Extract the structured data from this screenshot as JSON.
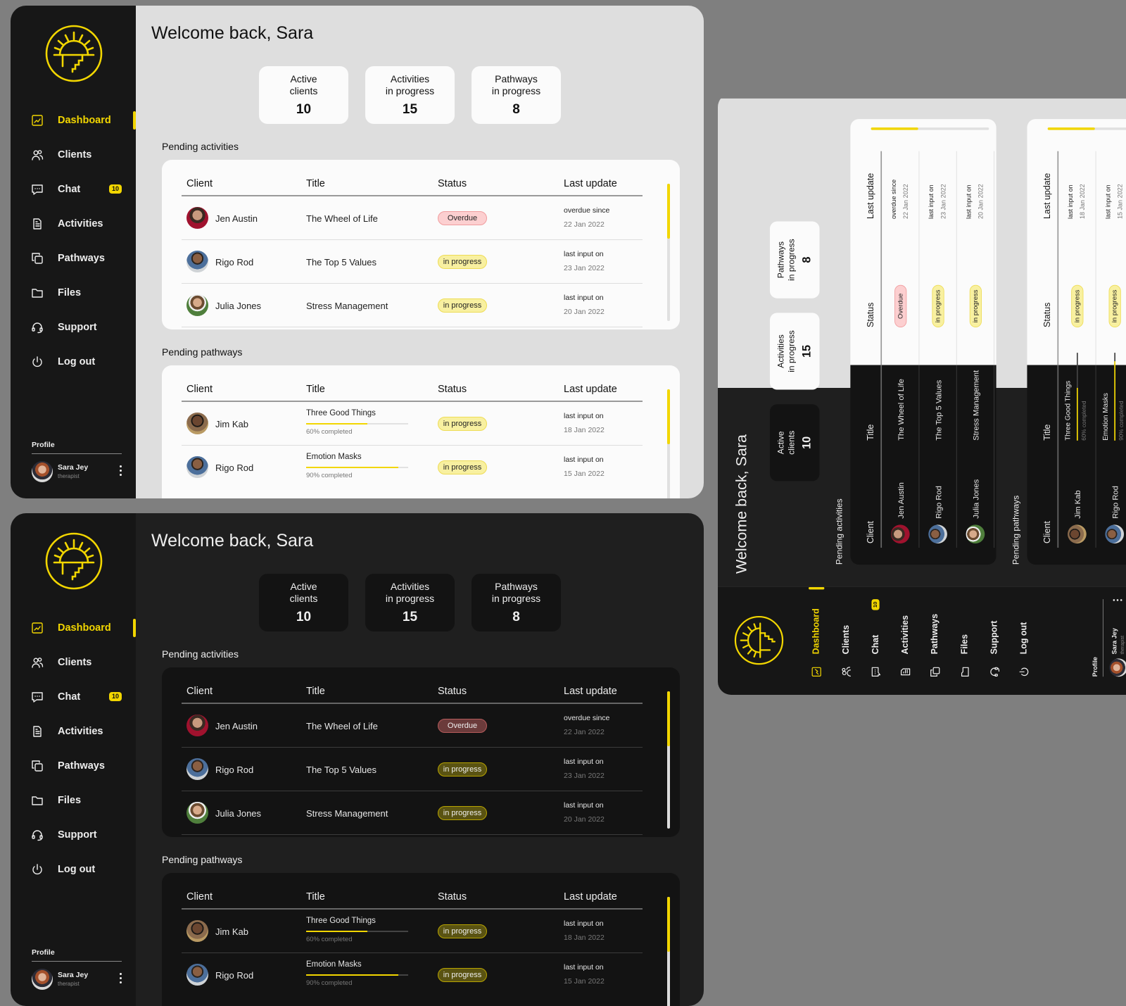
{
  "header": {
    "title": "Welcome back, Sara"
  },
  "sidebar": {
    "nav": [
      {
        "label": "Dashboard",
        "icon": "dashboard-chart-icon",
        "active": true
      },
      {
        "label": "Clients",
        "icon": "users-icon"
      },
      {
        "label": "Chat",
        "icon": "chat-icon",
        "badge": "10"
      },
      {
        "label": "Activities",
        "icon": "document-icon"
      },
      {
        "label": "Pathways",
        "icon": "copy-icon"
      },
      {
        "label": "Files",
        "icon": "folder-icon"
      },
      {
        "label": "Support",
        "icon": "headset-icon"
      },
      {
        "label": "Log out",
        "icon": "power-icon"
      }
    ],
    "profile": {
      "label": "Profile",
      "name": "Sara Jey",
      "role": "therapist"
    }
  },
  "stats": [
    {
      "line1": "Active",
      "line2": "clients",
      "value": "10"
    },
    {
      "line1": "Activities",
      "line2": "in progress",
      "value": "15"
    },
    {
      "line1": "Pathways",
      "line2": "in progress",
      "value": "8"
    }
  ],
  "pending_activities": {
    "title": "Pending activities",
    "columns": [
      "Client",
      "Title",
      "Status",
      "Last update"
    ],
    "rows": [
      {
        "client": "Jen Austin",
        "title": "The Wheel of Life",
        "status": "Overdue",
        "status_type": "overdue",
        "update_label": "overdue since",
        "update_date": "22 Jan 2022"
      },
      {
        "client": "Rigo Rod",
        "title": "The Top 5 Values",
        "status": "in progress",
        "status_type": "in-progress",
        "update_label": "last input on",
        "update_date": "23 Jan 2022"
      },
      {
        "client": "Julia Jones",
        "title": "Stress Management",
        "status": "in progress",
        "status_type": "in-progress",
        "update_label": "last input on",
        "update_date": "20 Jan 2022"
      }
    ]
  },
  "pending_pathways": {
    "title": "Pending pathways",
    "columns": [
      "Client",
      "Title",
      "Status",
      "Last update"
    ],
    "rows": [
      {
        "client": "Jim Kab",
        "title": "Three Good Things",
        "progress": 60,
        "progress_label": "60% completed",
        "status": "in progress",
        "status_type": "in-progress",
        "update_label": "last input on",
        "update_date": "18 Jan 2022"
      },
      {
        "client": "Rigo Rod",
        "title": "Emotion Masks",
        "progress": 90,
        "progress_label": "90% completed",
        "status": "in progress",
        "status_type": "in-progress",
        "update_label": "last input on",
        "update_date": "15 Jan 2022"
      }
    ]
  },
  "colors": {
    "accent": "#f2d600",
    "sidebar": "#171717",
    "light_bg": "#dedede",
    "dark_bg": "#1f1f1f",
    "overdue": "#fccfd0",
    "in_progress": "#f8f0a0"
  }
}
